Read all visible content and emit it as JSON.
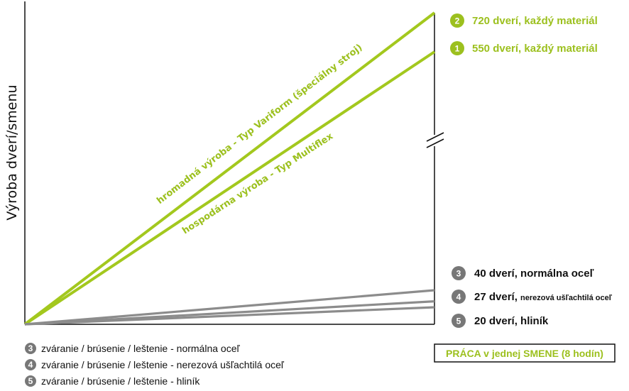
{
  "chart_data": {
    "type": "line",
    "ylabel": "Výroba dverí/smenu",
    "xlabel": "PRÁCA v jednej SMENE (8 hodín)",
    "xlim": [
      0,
      8
    ],
    "axis_break": true,
    "series": [
      {
        "num": "2",
        "name": "hromadná výroba - Typ Variform (špeciálny stroj)",
        "label_main": "720 dverí, každý materiál",
        "label_small": "",
        "color": "#a3c81e",
        "x": [
          0,
          8
        ],
        "y": [
          0,
          720
        ]
      },
      {
        "num": "1",
        "name": "hospodárna výroba - Typ Multiflex",
        "label_main": "550 dverí, každý materiál",
        "label_small": "",
        "color": "#a3c81e",
        "x": [
          0,
          8
        ],
        "y": [
          0,
          550
        ]
      },
      {
        "num": "3",
        "name": "",
        "label_main": "40 dverí, normálna oceľ",
        "label_small": "",
        "color": "#8c8c8c",
        "x": [
          0,
          8
        ],
        "y": [
          0,
          40
        ]
      },
      {
        "num": "4",
        "name": "",
        "label_main": "27 dverí, ",
        "label_small": "nerezová ušľachtilá oceľ",
        "color": "#8c8c8c",
        "x": [
          0,
          8
        ],
        "y": [
          0,
          27
        ]
      },
      {
        "num": "5",
        "name": "",
        "label_main": "20 dverí, hliník",
        "label_small": "",
        "color": "#8c8c8c",
        "x": [
          0,
          8
        ],
        "y": [
          0,
          20
        ]
      }
    ],
    "legend": [
      {
        "num": "3",
        "text": "zváranie / brúsenie / leštenie - normálna oceľ"
      },
      {
        "num": "4",
        "text": "zváranie / brúsenie / leštenie - nerezová ušľachtilá oceľ"
      },
      {
        "num": "5",
        "text": "zváranie / brúsenie / leštenie - hliník"
      }
    ],
    "colors": {
      "green": "#a3c81e",
      "green_badge": "#9cc01e",
      "gray": "#8c8c8c",
      "gray_badge": "#777777"
    }
  }
}
